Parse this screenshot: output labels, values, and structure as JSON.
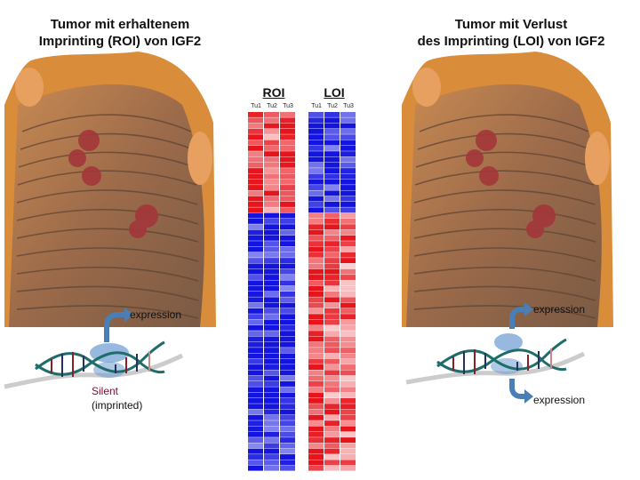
{
  "left_panel": {
    "title_line1": "Tumor mit erhaltenem",
    "title_line2": "Imprinting (ROI) von IGF2",
    "expression_label": "expression",
    "silent_label": "Silent",
    "imprinted_label": "(imprinted)"
  },
  "right_panel": {
    "title_line1": "Tumor mit Verlust",
    "title_line2": "des Imprinting (LOI) von IGF2",
    "expression_top_label": "expression",
    "expression_bottom_label": "expression"
  },
  "heatmaps": {
    "roi": {
      "title": "ROI",
      "columns": [
        "Tu1",
        "Tu2",
        "Tu3"
      ]
    },
    "loi": {
      "title": "LOI",
      "columns": [
        "Tu1",
        "Tu2",
        "Tu3"
      ]
    }
  },
  "colors": {
    "high": "#e8141c",
    "low": "#1414e0",
    "mid": "#ffffff",
    "arrow": "#4a7fb5",
    "silent_text": "#7a1030"
  }
}
